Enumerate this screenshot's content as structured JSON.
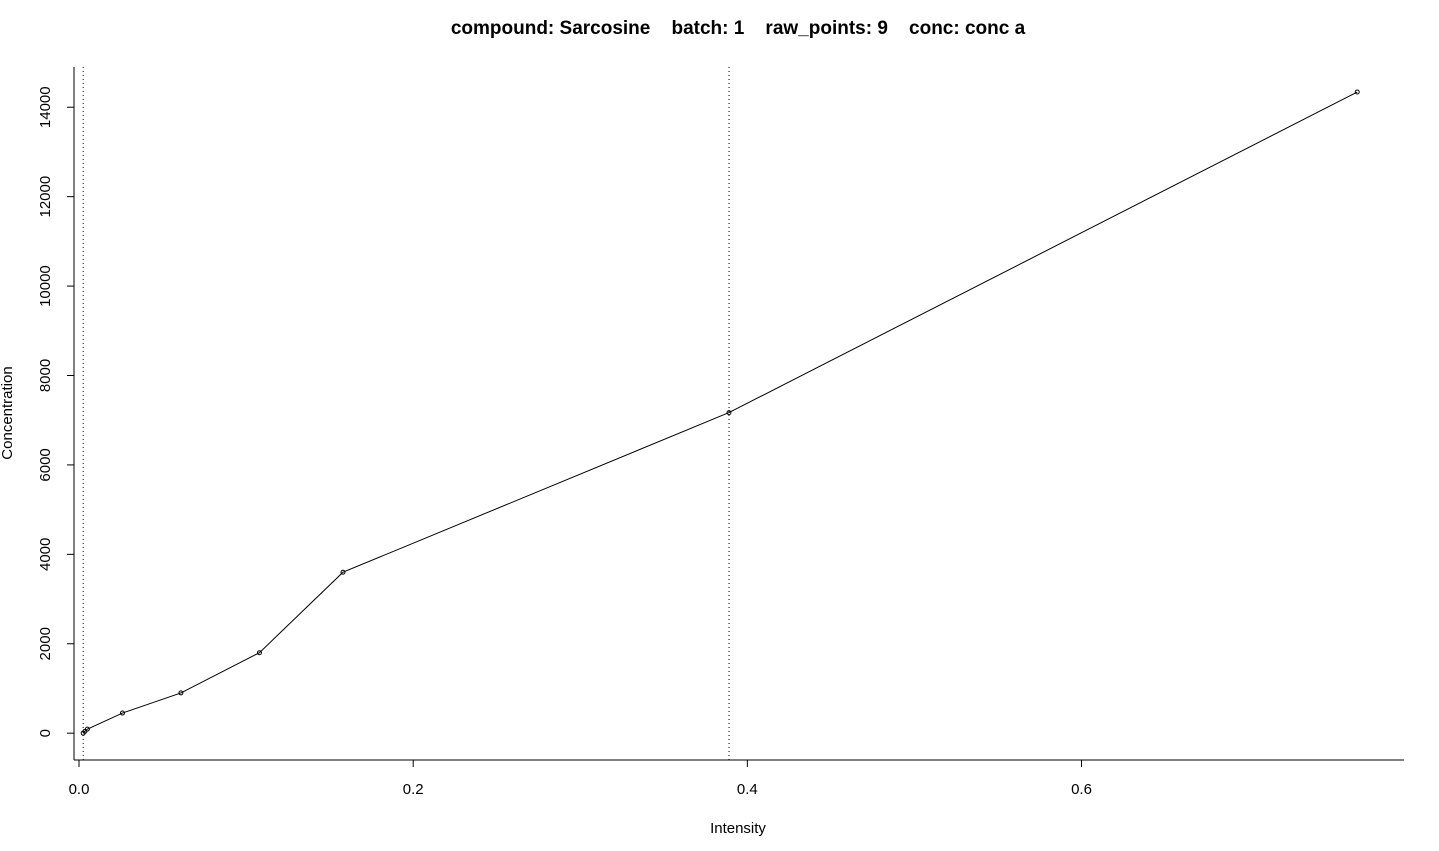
{
  "chart_data": {
    "type": "line",
    "title": "compound: Sarcosine    batch: 1    raw_points: 9    conc: conc a",
    "xlabel": "Intensity",
    "ylabel": "Concentration",
    "xlim": [
      -0.003,
      0.793
    ],
    "ylim": [
      -600,
      14900
    ],
    "x_ticks": [
      0.0,
      0.2,
      0.4,
      0.6
    ],
    "x_tick_labels": [
      "0.0",
      "0.2",
      "0.4",
      "0.6"
    ],
    "y_ticks": [
      0,
      2000,
      4000,
      6000,
      8000,
      10000,
      12000,
      14000
    ],
    "y_tick_labels": [
      "0",
      "2000",
      "4000",
      "6000",
      "8000",
      "10000",
      "12000",
      "14000"
    ],
    "vlines": [
      0.0025,
      0.389
    ],
    "points": {
      "x": [
        0.0025,
        0.0035,
        0.005,
        0.026,
        0.061,
        0.108,
        0.158,
        0.389,
        0.765
      ],
      "y": [
        0,
        40,
        90,
        450,
        900,
        1800,
        3600,
        7170,
        14340
      ]
    },
    "grid": false,
    "colors": {
      "line": "#000000",
      "axis": "#000000"
    }
  }
}
